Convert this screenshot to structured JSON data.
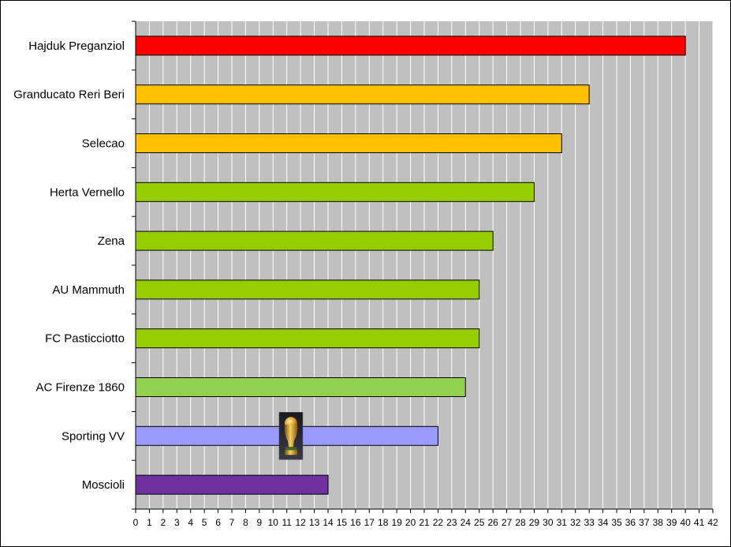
{
  "chart_data": {
    "type": "bar",
    "orientation": "horizontal",
    "title": "",
    "xlabel": "",
    "ylabel": "",
    "xlim": [
      0,
      42
    ],
    "x_ticks": [
      "0",
      "1",
      "2",
      "3",
      "4",
      "5",
      "6",
      "7",
      "8",
      "9",
      "10",
      "11",
      "12",
      "13",
      "14",
      "15",
      "16",
      "17",
      "18",
      "19",
      "20",
      "21",
      "22",
      "23",
      "24",
      "25",
      "26",
      "27",
      "28",
      "29",
      "30",
      "31",
      "32",
      "33",
      "34",
      "35",
      "36",
      "37",
      "38",
      "39",
      "40",
      "41",
      "42"
    ],
    "grid": true,
    "legend": "none",
    "plot_background": "#c0c0c0",
    "grid_color": "#ffffff",
    "categories": [
      "Hajduk Preganziol",
      "Granducato Reri Beri",
      "Selecao",
      "Herta Vernello",
      "Zena",
      "AU Mammuth",
      "FC Pasticciotto",
      "AC Firenze 1860",
      "Sporting VV",
      "Moscioli"
    ],
    "values": [
      40,
      33,
      31,
      29,
      26,
      25,
      25,
      24,
      22,
      14
    ],
    "colors": [
      "#ff0000",
      "#ffc000",
      "#ffc000",
      "#99cc00",
      "#99cc00",
      "#99cc00",
      "#99cc00",
      "#92d050",
      "#9999ff",
      "#7030a0"
    ],
    "annotations": [
      {
        "type": "trophy-icon",
        "category": "Sporting VV",
        "x_value": 11.3
      }
    ]
  }
}
